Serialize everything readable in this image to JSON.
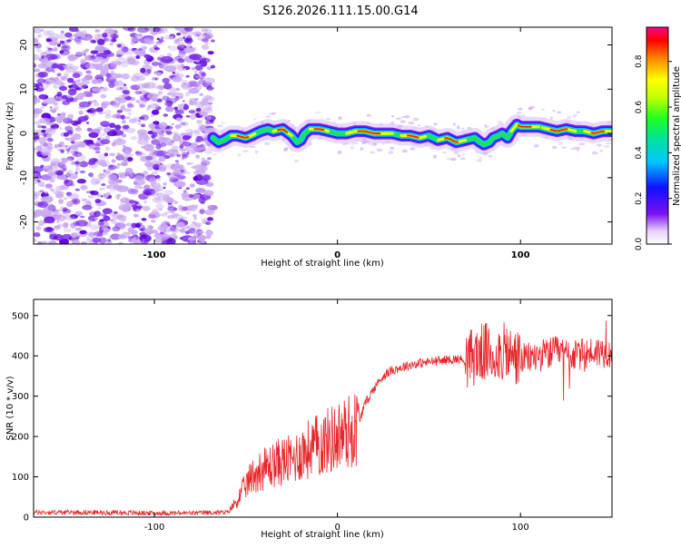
{
  "title": "S126.2026.111.15.00.G14",
  "colors": {
    "snr_line": "#e8262a",
    "low_density": "#c9a8f0",
    "mid_density": "#7b2bf0",
    "high_density": "#5a00d8"
  },
  "chart_data": [
    {
      "type": "heatmap",
      "xlabel": "Height of straight line (km)",
      "ylabel": "Frequency (Hz)",
      "xlim": [
        -166,
        150
      ],
      "ylim": [
        -25,
        24
      ],
      "xticks": [
        -100,
        0,
        100
      ],
      "yticks": [
        -20,
        -10,
        0,
        10,
        20
      ],
      "noise_region_x": [
        -166,
        -68
      ],
      "ridge": {
        "x": [
          -68,
          -65,
          -62,
          -58,
          -55,
          -50,
          -47,
          -42,
          -38,
          -35,
          -30,
          -25,
          -22,
          -20,
          -18,
          -15,
          -10,
          -5,
          0,
          5,
          10,
          15,
          20,
          25,
          30,
          35,
          40,
          45,
          50,
          55,
          60,
          65,
          70,
          75,
          78,
          80,
          83,
          85,
          88,
          90,
          93,
          95,
          98,
          100,
          105,
          110,
          115,
          120,
          125,
          130,
          135,
          140,
          145,
          150
        ],
        "y": [
          -1,
          -2,
          -1.5,
          -0.5,
          -0.5,
          -1,
          -0.5,
          0.5,
          1,
          0.5,
          1,
          -0.5,
          -2,
          -1.5,
          0,
          1,
          1,
          0.5,
          0,
          0,
          0.5,
          0.5,
          0,
          0,
          0,
          -0.5,
          -0.5,
          -1,
          -0.5,
          -1.5,
          -1,
          -2,
          -1.5,
          -1,
          -2,
          -2.5,
          -2,
          -1,
          -0.5,
          0,
          -1,
          0.5,
          2,
          1.5,
          1.5,
          1.5,
          1,
          0.5,
          1,
          0.5,
          0.5,
          0,
          0.5,
          0.5
        ]
      },
      "colorbar": {
        "label": "Normalized spectral amplitude",
        "range": [
          0,
          0.95
        ],
        "ticks": [
          0.0,
          0.2,
          0.4,
          0.6,
          0.8
        ]
      }
    },
    {
      "type": "line",
      "xlabel": "Height of straight line (km)",
      "ylabel": "SNR (10 * v/v)",
      "xlim": [
        -166,
        150
      ],
      "ylim": [
        0,
        540
      ],
      "xticks": [
        -100,
        0,
        100
      ],
      "yticks": [
        0,
        100,
        200,
        300,
        400,
        500
      ],
      "series": [
        {
          "name": "SNR",
          "envelope": {
            "x": [
              -166,
              -140,
              -100,
              -80,
              -60,
              -55,
              -50,
              -45,
              -40,
              -35,
              -30,
              -25,
              -20,
              -15,
              -10,
              -5,
              0,
              5,
              10,
              12,
              15,
              20,
              25,
              30,
              40,
              50,
              60,
              65,
              70,
              75,
              80,
              85,
              90,
              95,
              100,
              110,
              120,
              130,
              140,
              150
            ],
            "y": [
              12,
              12,
              10,
              10,
              12,
              40,
              80,
              110,
              120,
              130,
              140,
              140,
              160,
              170,
              180,
              190,
              200,
              210,
              220,
              240,
              280,
              320,
              350,
              365,
              378,
              385,
              390,
              392,
              390,
              400,
              410,
              400,
              410,
              400,
              390,
              400,
              410,
              400,
              410,
              410
            ]
          }
        }
      ]
    }
  ]
}
